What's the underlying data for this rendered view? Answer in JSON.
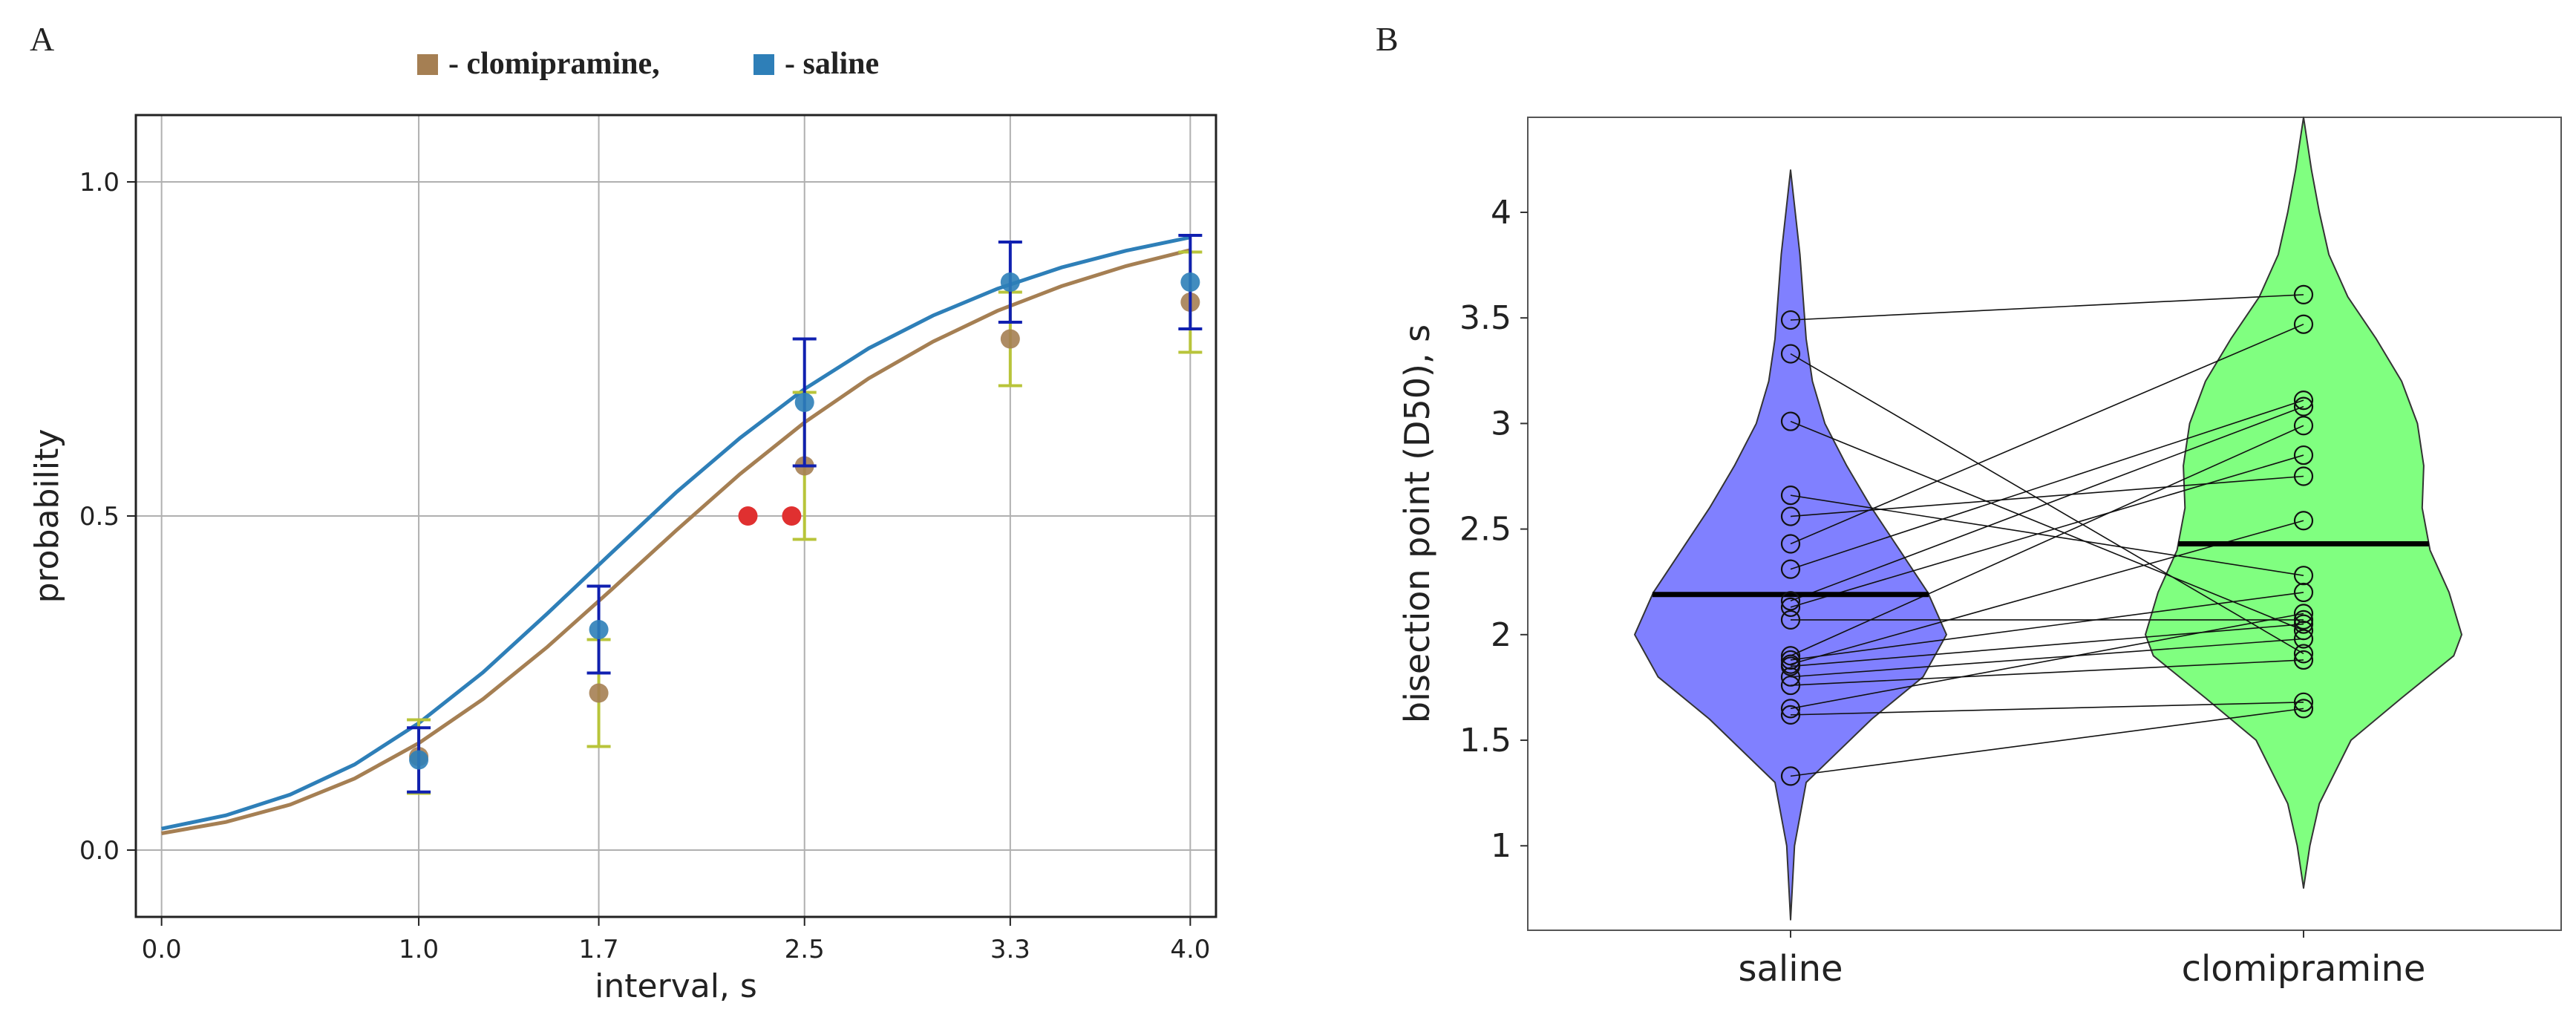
{
  "panels": {
    "a": {
      "letter": "A"
    },
    "b": {
      "letter": "B"
    }
  },
  "chart_data": [
    {
      "type": "line",
      "panel": "A",
      "legend": {
        "placement": "top",
        "entries": [
          {
            "name": "- clomipramine,",
            "color": "#a57f53"
          },
          {
            "name": "-  saline",
            "color": "#2e7fb8"
          }
        ]
      },
      "xlabel": "interval, s",
      "ylabel": "probability",
      "xlim": [
        -0.1,
        4.1
      ],
      "ylim": [
        -0.1,
        1.1
      ],
      "x_ticks": [
        0.0,
        1.0,
        1.7,
        2.5,
        3.3,
        4.0
      ],
      "x_tick_labels": [
        "0.0",
        "1.0",
        "1.7",
        "2.5",
        "3.3",
        "4.0"
      ],
      "y_ticks": [
        0.0,
        0.5,
        1.0
      ],
      "y_tick_labels": [
        "0.0",
        "0.5",
        "1.0"
      ],
      "grid": true,
      "x_curve": [
        0.0,
        0.25,
        0.5,
        0.75,
        1.0,
        1.25,
        1.5,
        1.75,
        2.0,
        2.25,
        2.5,
        2.75,
        3.0,
        3.25,
        3.5,
        3.75,
        4.0
      ],
      "series": [
        {
          "name": "clomipramine",
          "color": "#a57f53",
          "error_color": "#b8c43a",
          "x": [
            1.0,
            1.7,
            2.5,
            3.3,
            4.0
          ],
          "y": [
            0.14,
            0.235,
            0.575,
            0.765,
            0.82
          ],
          "yerr": [
            0.055,
            0.08,
            0.11,
            0.07,
            0.075
          ],
          "fit_curve": [
            0.025,
            0.042,
            0.068,
            0.107,
            0.16,
            0.226,
            0.304,
            0.39,
            0.478,
            0.563,
            0.64,
            0.706,
            0.761,
            0.807,
            0.844,
            0.874,
            0.898
          ]
        },
        {
          "name": "saline",
          "color": "#2e7fb8",
          "error_color": "#1020b0",
          "x": [
            1.0,
            1.7,
            2.5,
            3.3,
            4.0
          ],
          "y": [
            0.135,
            0.33,
            0.67,
            0.85,
            0.85
          ],
          "yerr": [
            0.048,
            0.065,
            0.095,
            0.06,
            0.07
          ],
          "fit_curve": [
            0.032,
            0.052,
            0.083,
            0.128,
            0.19,
            0.266,
            0.354,
            0.445,
            0.535,
            0.617,
            0.69,
            0.751,
            0.8,
            0.84,
            0.872,
            0.897,
            0.917
          ]
        }
      ],
      "bisection_points": {
        "x": [
          2.28,
          2.45
        ],
        "y": [
          0.5,
          0.5
        ],
        "color": "#e03030"
      }
    },
    {
      "type": "violin",
      "panel": "B",
      "ylabel": "bisection point (D50), s",
      "ylim": [
        0.6,
        4.45
      ],
      "y_ticks": [
        1,
        1.5,
        2,
        2.5,
        3,
        3.5,
        4
      ],
      "y_tick_labels": [
        "1",
        "1.5",
        "2",
        "2.5",
        "3",
        "3.5",
        "4"
      ],
      "categories": [
        "saline",
        "clomipramine"
      ],
      "violins": [
        {
          "name": "saline",
          "color": "#8080ff",
          "median": 2.19,
          "range": [
            0.65,
            4.2
          ],
          "density_y": [
            0.65,
            1.0,
            1.3,
            1.6,
            1.8,
            2.0,
            2.2,
            2.4,
            2.6,
            2.8,
            3.0,
            3.2,
            3.4,
            3.6,
            3.8,
            4.0,
            4.2
          ],
          "density_w": [
            0.0,
            0.025,
            0.1,
            0.52,
            0.85,
            1.0,
            0.88,
            0.7,
            0.52,
            0.36,
            0.22,
            0.14,
            0.1,
            0.08,
            0.06,
            0.03,
            0.0
          ]
        },
        {
          "name": "clomipramine",
          "color": "#80ff80",
          "median": 2.43,
          "range": [
            0.8,
            4.45
          ],
          "density_y": [
            0.8,
            1.0,
            1.2,
            1.5,
            1.7,
            1.9,
            2.0,
            2.2,
            2.4,
            2.6,
            2.8,
            3.0,
            3.2,
            3.4,
            3.6,
            3.8,
            4.0,
            4.2,
            4.45
          ],
          "density_w": [
            0.0,
            0.04,
            0.1,
            0.3,
            0.62,
            0.95,
            1.0,
            0.92,
            0.8,
            0.75,
            0.76,
            0.72,
            0.62,
            0.46,
            0.28,
            0.16,
            0.1,
            0.05,
            0.0
          ]
        }
      ],
      "pairs": [
        [
          3.49,
          3.61
        ],
        [
          3.33,
          1.91
        ],
        [
          3.01,
          2.02
        ],
        [
          2.66,
          2.28
        ],
        [
          2.56,
          2.75
        ],
        [
          2.43,
          3.47
        ],
        [
          2.31,
          3.11
        ],
        [
          2.16,
          3.08
        ],
        [
          2.13,
          2.85
        ],
        [
          2.07,
          2.07
        ],
        [
          1.9,
          2.99
        ],
        [
          1.88,
          2.2
        ],
        [
          1.86,
          2.54
        ],
        [
          1.85,
          2.05
        ],
        [
          1.8,
          1.98
        ],
        [
          1.76,
          1.88
        ],
        [
          1.65,
          2.1
        ],
        [
          1.62,
          1.68
        ],
        [
          1.33,
          1.65
        ]
      ]
    }
  ]
}
